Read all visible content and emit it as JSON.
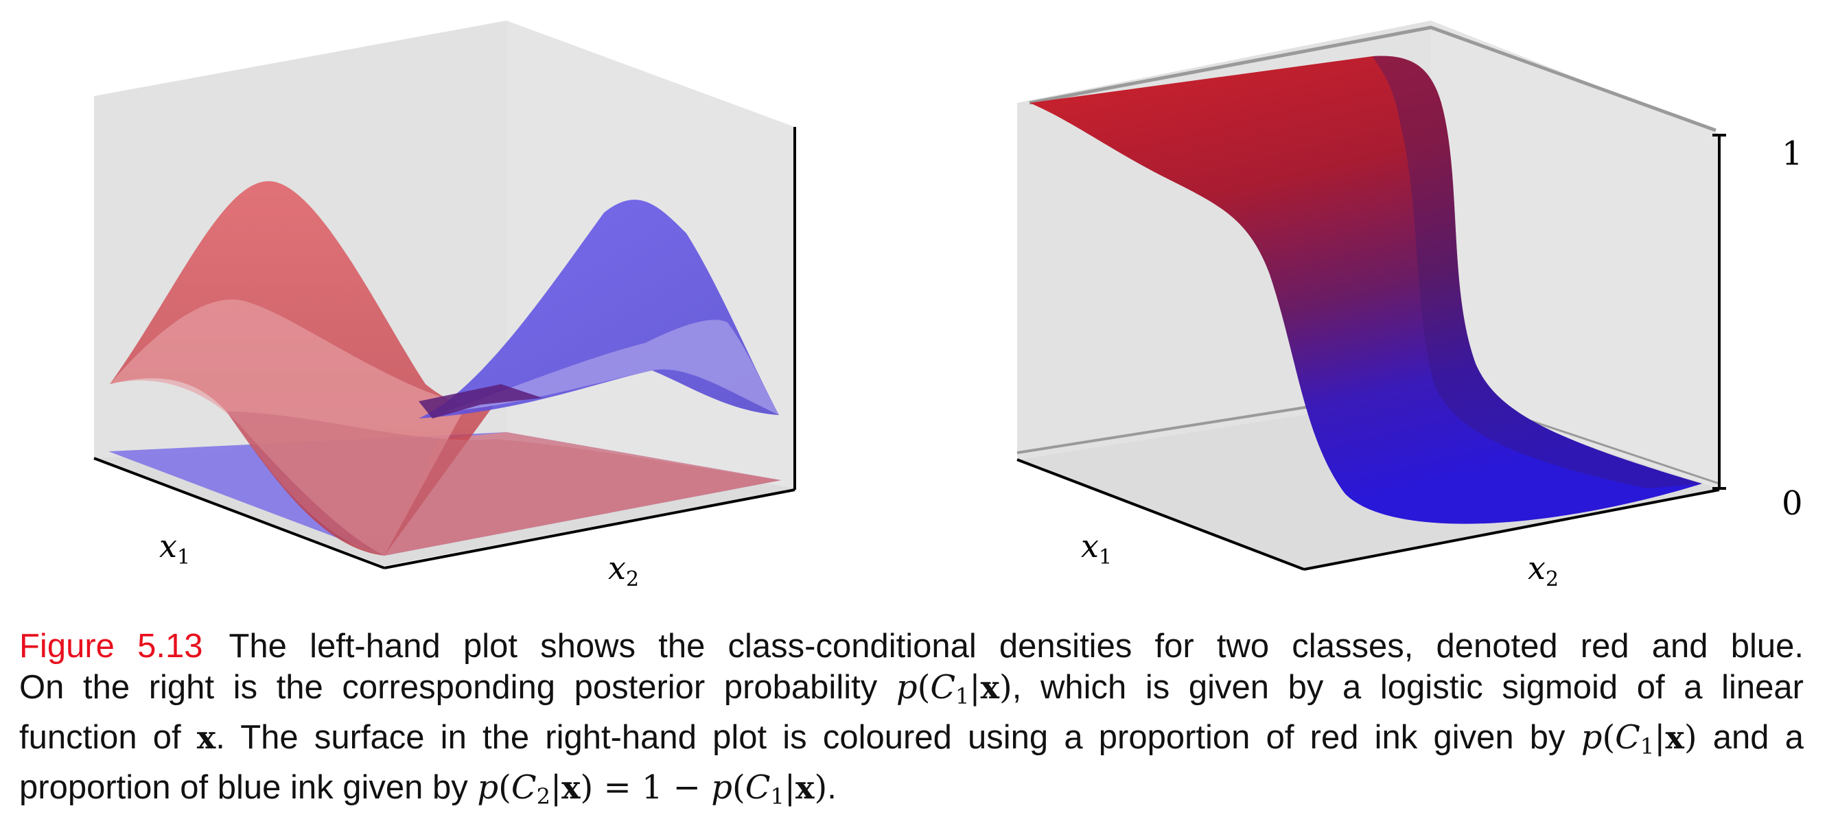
{
  "left_plot": {
    "x_axis_label": "x",
    "x_axis_sub": "1",
    "y_axis_label": "x",
    "y_axis_sub": "2",
    "series": [
      {
        "color": "#e0484c"
      },
      {
        "color": "#4a3ce8"
      }
    ]
  },
  "right_plot": {
    "x_axis_label": "x",
    "x_axis_sub": "1",
    "y_axis_label": "x",
    "y_axis_sub": "2",
    "z_ticks": [
      "1",
      "0"
    ],
    "surface_color_high": "#cc1f2a",
    "surface_color_low": "#2a1ad8"
  },
  "caption": {
    "label": "Figure 5.13",
    "line1": "The left-hand plot shows the class-conditional densities for two classes, denoted red and blue.",
    "line2_a": "On the right is the corresponding posterior probability",
    "line2_b": ", which is given by a logistic sigmoid of a linear",
    "line3_a": "function of",
    "line3_b": ". The surface in the right-hand plot is coloured using a proportion of red ink given by",
    "line3_c": "and a",
    "line4_a": "proportion of blue ink given by",
    "line4_b": "."
  }
}
